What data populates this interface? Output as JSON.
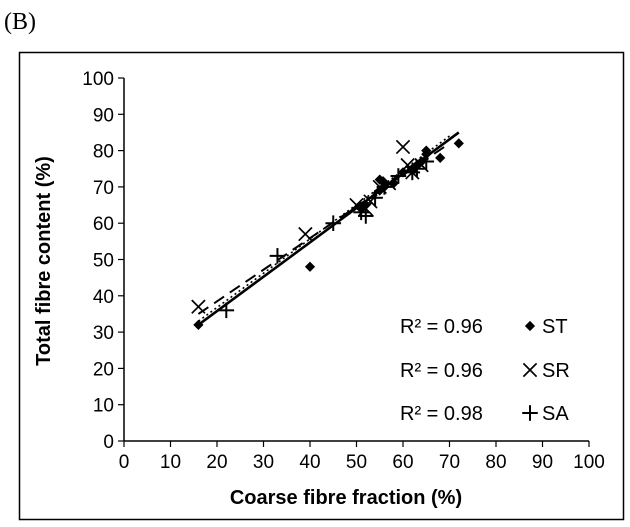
{
  "panel_label": "(B)",
  "chart_data": {
    "type": "scatter",
    "xlabel": "Coarse fibre fraction (%)",
    "ylabel": "Total fibre content (%)",
    "xlim": [
      0,
      100
    ],
    "ylim": [
      0,
      100
    ],
    "xticks": [
      "0",
      "10",
      "20",
      "30",
      "40",
      "50",
      "60",
      "70",
      "80",
      "90",
      "100"
    ],
    "yticks": [
      "0",
      "10",
      "20",
      "30",
      "40",
      "50",
      "60",
      "70",
      "80",
      "90",
      "100"
    ],
    "grid": false,
    "legend_position": "bottom-right",
    "series": [
      {
        "name": "ST",
        "marker": "diamond",
        "r2_label": "R² = 0.96",
        "trendline": {
          "style": "solid",
          "x": [
            16,
            72
          ],
          "y": [
            32,
            85
          ]
        },
        "points": [
          [
            16,
            32
          ],
          [
            40,
            48
          ],
          [
            51,
            64
          ],
          [
            52,
            65
          ],
          [
            55,
            69
          ],
          [
            55,
            72
          ],
          [
            56,
            70
          ],
          [
            56,
            71
          ],
          [
            58,
            71
          ],
          [
            60,
            74
          ],
          [
            62,
            75
          ],
          [
            63,
            76
          ],
          [
            64,
            77
          ],
          [
            65,
            79
          ],
          [
            65,
            80
          ],
          [
            68,
            78
          ],
          [
            72,
            82
          ]
        ]
      },
      {
        "name": "SR",
        "marker": "x",
        "r2_label": "R² = 0.96",
        "trendline": {
          "style": "dashed",
          "x": [
            16,
            70
          ],
          "y": [
            35,
            82
          ]
        },
        "points": [
          [
            16,
            37
          ],
          [
            39,
            57
          ],
          [
            50,
            65
          ],
          [
            52,
            64
          ],
          [
            53,
            66
          ],
          [
            55,
            70
          ],
          [
            57,
            71
          ],
          [
            60,
            81
          ],
          [
            61,
            76
          ],
          [
            62,
            74
          ],
          [
            64,
            76
          ]
        ]
      },
      {
        "name": "SA",
        "marker": "plus",
        "r2_label": "R² = 0.98",
        "trendline": {
          "style": "dotted",
          "x": [
            16,
            70
          ],
          "y": [
            33,
            84
          ]
        },
        "points": [
          [
            22,
            36
          ],
          [
            33,
            51
          ],
          [
            45,
            60
          ],
          [
            51,
            63
          ],
          [
            52,
            62
          ],
          [
            54,
            67
          ],
          [
            56,
            70
          ],
          [
            59,
            73
          ],
          [
            62,
            74
          ],
          [
            63,
            75
          ],
          [
            65,
            77
          ]
        ]
      }
    ],
    "colors": {
      "marks": "#000000",
      "background": "#ffffff"
    }
  }
}
